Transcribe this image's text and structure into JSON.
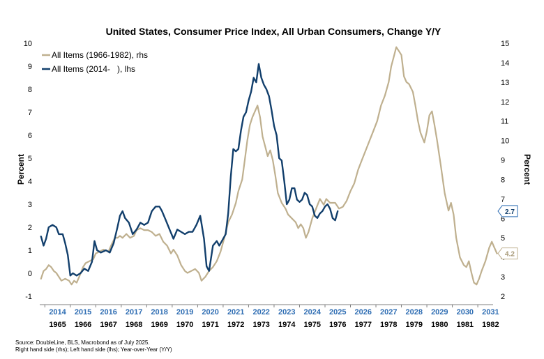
{
  "chart_data": {
    "type": "line",
    "title": "United States, Consumer Price Index, All Urban Consumers, Change Y/Y",
    "ylabel_left": "Percent",
    "ylabel_right": "Percent",
    "ylim_left": [
      -1,
      10
    ],
    "ylim_right": [
      2,
      15
    ],
    "yticks_left": [
      "-1",
      "0",
      "1",
      "2",
      "3",
      "4",
      "5",
      "6",
      "7",
      "8",
      "9",
      "10"
    ],
    "yticks_right": [
      "2",
      "3",
      "4",
      "5",
      "6",
      "7",
      "8",
      "9",
      "10",
      "11",
      "12",
      "13",
      "14",
      "15"
    ],
    "xticks_top": [
      "2014",
      "2015",
      "2016",
      "2017",
      "2018",
      "2019",
      "2020",
      "2021",
      "2022",
      "2023",
      "2024",
      "2025",
      "2026",
      "2027",
      "2028",
      "2029",
      "2030",
      "2031"
    ],
    "xticks_bottom": [
      "1965",
      "1966",
      "1967",
      "1968",
      "1969",
      "1970",
      "1971",
      "1972",
      "1973",
      "1974",
      "1975",
      "1976",
      "1977",
      "1978",
      "1979",
      "1980",
      "1981",
      "1982"
    ],
    "x_range": [
      2013.8,
      2031.6
    ],
    "grid": false,
    "legend_position": "top-left",
    "series": [
      {
        "name": "All Items (1966-1982), rhs",
        "axis": "right",
        "color": "#bfb08f",
        "end_label": "4.2",
        "points": [
          [
            2013.85,
            2.9
          ],
          [
            2013.95,
            3.3
          ],
          [
            2014.05,
            3.4
          ],
          [
            2014.15,
            3.6
          ],
          [
            2014.25,
            3.5
          ],
          [
            2014.35,
            3.3
          ],
          [
            2014.45,
            3.2
          ],
          [
            2014.55,
            3.0
          ],
          [
            2014.65,
            2.8
          ],
          [
            2014.8,
            2.9
          ],
          [
            2014.95,
            2.8
          ],
          [
            2015.05,
            2.6
          ],
          [
            2015.15,
            2.8
          ],
          [
            2015.25,
            2.7
          ],
          [
            2015.35,
            3.0
          ],
          [
            2015.5,
            3.5
          ],
          [
            2015.6,
            3.7
          ],
          [
            2015.75,
            3.8
          ],
          [
            2015.9,
            3.9
          ],
          [
            2016.0,
            4.2
          ],
          [
            2016.15,
            4.3
          ],
          [
            2016.3,
            4.4
          ],
          [
            2016.5,
            4.3
          ],
          [
            2016.6,
            4.6
          ],
          [
            2016.75,
            5.0
          ],
          [
            2016.85,
            5.0
          ],
          [
            2016.95,
            5.1
          ],
          [
            2017.05,
            5.0
          ],
          [
            2017.2,
            5.2
          ],
          [
            2017.35,
            5.0
          ],
          [
            2017.5,
            5.1
          ],
          [
            2017.6,
            5.4
          ],
          [
            2017.75,
            5.5
          ],
          [
            2017.9,
            5.4
          ],
          [
            2018.05,
            5.4
          ],
          [
            2018.2,
            5.3
          ],
          [
            2018.35,
            5.1
          ],
          [
            2018.5,
            5.2
          ],
          [
            2018.65,
            4.8
          ],
          [
            2018.8,
            4.6
          ],
          [
            2018.95,
            4.2
          ],
          [
            2019.05,
            4.4
          ],
          [
            2019.2,
            4.1
          ],
          [
            2019.35,
            3.6
          ],
          [
            2019.5,
            3.3
          ],
          [
            2019.6,
            3.2
          ],
          [
            2019.75,
            3.3
          ],
          [
            2019.9,
            3.4
          ],
          [
            2020.05,
            3.2
          ],
          [
            2020.15,
            2.8
          ],
          [
            2020.3,
            3.0
          ],
          [
            2020.45,
            3.3
          ],
          [
            2020.6,
            3.5
          ],
          [
            2020.75,
            3.8
          ],
          [
            2020.9,
            4.3
          ],
          [
            2021.05,
            5.0
          ],
          [
            2021.2,
            5.8
          ],
          [
            2021.35,
            6.2
          ],
          [
            2021.5,
            6.8
          ],
          [
            2021.6,
            7.4
          ],
          [
            2021.75,
            8.0
          ],
          [
            2021.85,
            9.0
          ],
          [
            2021.95,
            10.0
          ],
          [
            2022.05,
            10.8
          ],
          [
            2022.15,
            11.2
          ],
          [
            2022.25,
            11.5
          ],
          [
            2022.35,
            11.8
          ],
          [
            2022.45,
            11.2
          ],
          [
            2022.55,
            10.2
          ],
          [
            2022.65,
            9.7
          ],
          [
            2022.75,
            9.2
          ],
          [
            2022.85,
            9.5
          ],
          [
            2022.95,
            9.0
          ],
          [
            2023.05,
            8.2
          ],
          [
            2023.15,
            7.3
          ],
          [
            2023.3,
            6.8
          ],
          [
            2023.45,
            6.5
          ],
          [
            2023.55,
            6.2
          ],
          [
            2023.7,
            6.0
          ],
          [
            2023.85,
            5.8
          ],
          [
            2023.95,
            5.5
          ],
          [
            2024.05,
            5.7
          ],
          [
            2024.15,
            5.5
          ],
          [
            2024.25,
            5.0
          ],
          [
            2024.35,
            5.3
          ],
          [
            2024.5,
            6.0
          ],
          [
            2024.65,
            6.5
          ],
          [
            2024.8,
            7.0
          ],
          [
            2024.95,
            6.7
          ],
          [
            2025.05,
            7.0
          ],
          [
            2025.2,
            6.8
          ],
          [
            2025.4,
            6.8
          ],
          [
            2025.55,
            6.5
          ],
          [
            2025.7,
            6.6
          ],
          [
            2025.85,
            6.9
          ],
          [
            2026.0,
            7.4
          ],
          [
            2026.15,
            7.8
          ],
          [
            2026.3,
            8.5
          ],
          [
            2026.45,
            9.0
          ],
          [
            2026.6,
            9.5
          ],
          [
            2026.75,
            10.0
          ],
          [
            2026.9,
            10.5
          ],
          [
            2027.05,
            11.0
          ],
          [
            2027.2,
            11.8
          ],
          [
            2027.35,
            12.3
          ],
          [
            2027.5,
            13.0
          ],
          [
            2027.6,
            13.8
          ],
          [
            2027.7,
            14.3
          ],
          [
            2027.8,
            14.8
          ],
          [
            2027.9,
            14.6
          ],
          [
            2028.0,
            14.4
          ],
          [
            2028.1,
            13.3
          ],
          [
            2028.2,
            13.0
          ],
          [
            2028.3,
            12.9
          ],
          [
            2028.45,
            12.5
          ],
          [
            2028.55,
            11.8
          ],
          [
            2028.65,
            11.0
          ],
          [
            2028.75,
            10.4
          ],
          [
            2028.9,
            9.9
          ],
          [
            2029.0,
            10.5
          ],
          [
            2029.1,
            11.3
          ],
          [
            2029.2,
            11.5
          ],
          [
            2029.3,
            10.8
          ],
          [
            2029.4,
            10.0
          ],
          [
            2029.55,
            8.7
          ],
          [
            2029.7,
            7.3
          ],
          [
            2029.85,
            6.4
          ],
          [
            2029.95,
            6.8
          ],
          [
            2030.05,
            6.2
          ],
          [
            2030.15,
            5.0
          ],
          [
            2030.3,
            4.0
          ],
          [
            2030.45,
            3.6
          ],
          [
            2030.55,
            3.5
          ],
          [
            2030.65,
            3.8
          ],
          [
            2030.75,
            3.2
          ],
          [
            2030.85,
            2.7
          ],
          [
            2030.95,
            2.6
          ],
          [
            2031.05,
            2.9
          ],
          [
            2031.15,
            3.3
          ],
          [
            2031.3,
            3.8
          ],
          [
            2031.45,
            4.5
          ],
          [
            2031.55,
            4.8
          ],
          [
            2031.65,
            4.5
          ],
          [
            2031.75,
            4.2
          ]
        ]
      },
      {
        "name": "All Items (2014-   ), lhs",
        "axis": "left",
        "color": "#123f6c",
        "end_label": "2.7",
        "points": [
          [
            2013.85,
            1.6
          ],
          [
            2013.95,
            1.2
          ],
          [
            2014.05,
            1.5
          ],
          [
            2014.15,
            2.0
          ],
          [
            2014.3,
            2.1
          ],
          [
            2014.45,
            2.0
          ],
          [
            2014.55,
            1.7
          ],
          [
            2014.7,
            1.7
          ],
          [
            2014.8,
            1.3
          ],
          [
            2014.9,
            0.8
          ],
          [
            2015.0,
            -0.1
          ],
          [
            2015.1,
            0.0
          ],
          [
            2015.25,
            -0.1
          ],
          [
            2015.4,
            0.0
          ],
          [
            2015.55,
            0.2
          ],
          [
            2015.7,
            0.1
          ],
          [
            2015.85,
            0.5
          ],
          [
            2015.95,
            1.4
          ],
          [
            2016.05,
            1.0
          ],
          [
            2016.2,
            0.9
          ],
          [
            2016.4,
            1.0
          ],
          [
            2016.55,
            0.9
          ],
          [
            2016.7,
            1.3
          ],
          [
            2016.85,
            2.0
          ],
          [
            2016.95,
            2.5
          ],
          [
            2017.05,
            2.7
          ],
          [
            2017.15,
            2.4
          ],
          [
            2017.3,
            2.2
          ],
          [
            2017.45,
            1.7
          ],
          [
            2017.6,
            1.9
          ],
          [
            2017.75,
            2.2
          ],
          [
            2017.9,
            2.1
          ],
          [
            2018.05,
            2.2
          ],
          [
            2018.2,
            2.7
          ],
          [
            2018.35,
            2.9
          ],
          [
            2018.5,
            2.9
          ],
          [
            2018.6,
            2.7
          ],
          [
            2018.75,
            2.3
          ],
          [
            2018.9,
            1.9
          ],
          [
            2019.05,
            1.5
          ],
          [
            2019.2,
            1.9
          ],
          [
            2019.35,
            1.8
          ],
          [
            2019.5,
            1.7
          ],
          [
            2019.65,
            1.8
          ],
          [
            2019.8,
            1.8
          ],
          [
            2019.95,
            2.1
          ],
          [
            2020.1,
            2.5
          ],
          [
            2020.25,
            1.5
          ],
          [
            2020.35,
            0.3
          ],
          [
            2020.45,
            0.1
          ],
          [
            2020.6,
            1.2
          ],
          [
            2020.75,
            1.4
          ],
          [
            2020.85,
            1.2
          ],
          [
            2020.95,
            1.4
          ],
          [
            2021.1,
            1.7
          ],
          [
            2021.2,
            2.6
          ],
          [
            2021.3,
            4.2
          ],
          [
            2021.4,
            5.4
          ],
          [
            2021.5,
            5.3
          ],
          [
            2021.6,
            5.4
          ],
          [
            2021.7,
            6.2
          ],
          [
            2021.8,
            6.8
          ],
          [
            2021.9,
            7.0
          ],
          [
            2022.0,
            7.5
          ],
          [
            2022.1,
            7.9
          ],
          [
            2022.2,
            8.5
          ],
          [
            2022.3,
            8.3
          ],
          [
            2022.4,
            9.1
          ],
          [
            2022.5,
            8.5
          ],
          [
            2022.6,
            8.2
          ],
          [
            2022.7,
            8.0
          ],
          [
            2022.8,
            7.7
          ],
          [
            2022.9,
            7.1
          ],
          [
            2023.0,
            6.4
          ],
          [
            2023.1,
            6.0
          ],
          [
            2023.2,
            5.0
          ],
          [
            2023.3,
            4.9
          ],
          [
            2023.4,
            4.0
          ],
          [
            2023.5,
            3.0
          ],
          [
            2023.6,
            3.2
          ],
          [
            2023.7,
            3.7
          ],
          [
            2023.8,
            3.7
          ],
          [
            2023.9,
            3.2
          ],
          [
            2024.0,
            3.1
          ],
          [
            2024.1,
            3.2
          ],
          [
            2024.2,
            3.5
          ],
          [
            2024.3,
            3.4
          ],
          [
            2024.4,
            3.0
          ],
          [
            2024.5,
            2.9
          ],
          [
            2024.6,
            2.5
          ],
          [
            2024.7,
            2.4
          ],
          [
            2024.8,
            2.6
          ],
          [
            2024.9,
            2.7
          ],
          [
            2025.0,
            2.9
          ],
          [
            2025.1,
            3.0
          ],
          [
            2025.2,
            2.8
          ],
          [
            2025.3,
            2.4
          ],
          [
            2025.4,
            2.3
          ],
          [
            2025.5,
            2.7
          ]
        ]
      }
    ]
  },
  "footer": {
    "source": "Source: DoubleLine, BLS, Macrobond as of July 2025.",
    "note": "Right hand side (rhs); Left hand side (lhs); Year-over-Year (Y/Y)"
  }
}
